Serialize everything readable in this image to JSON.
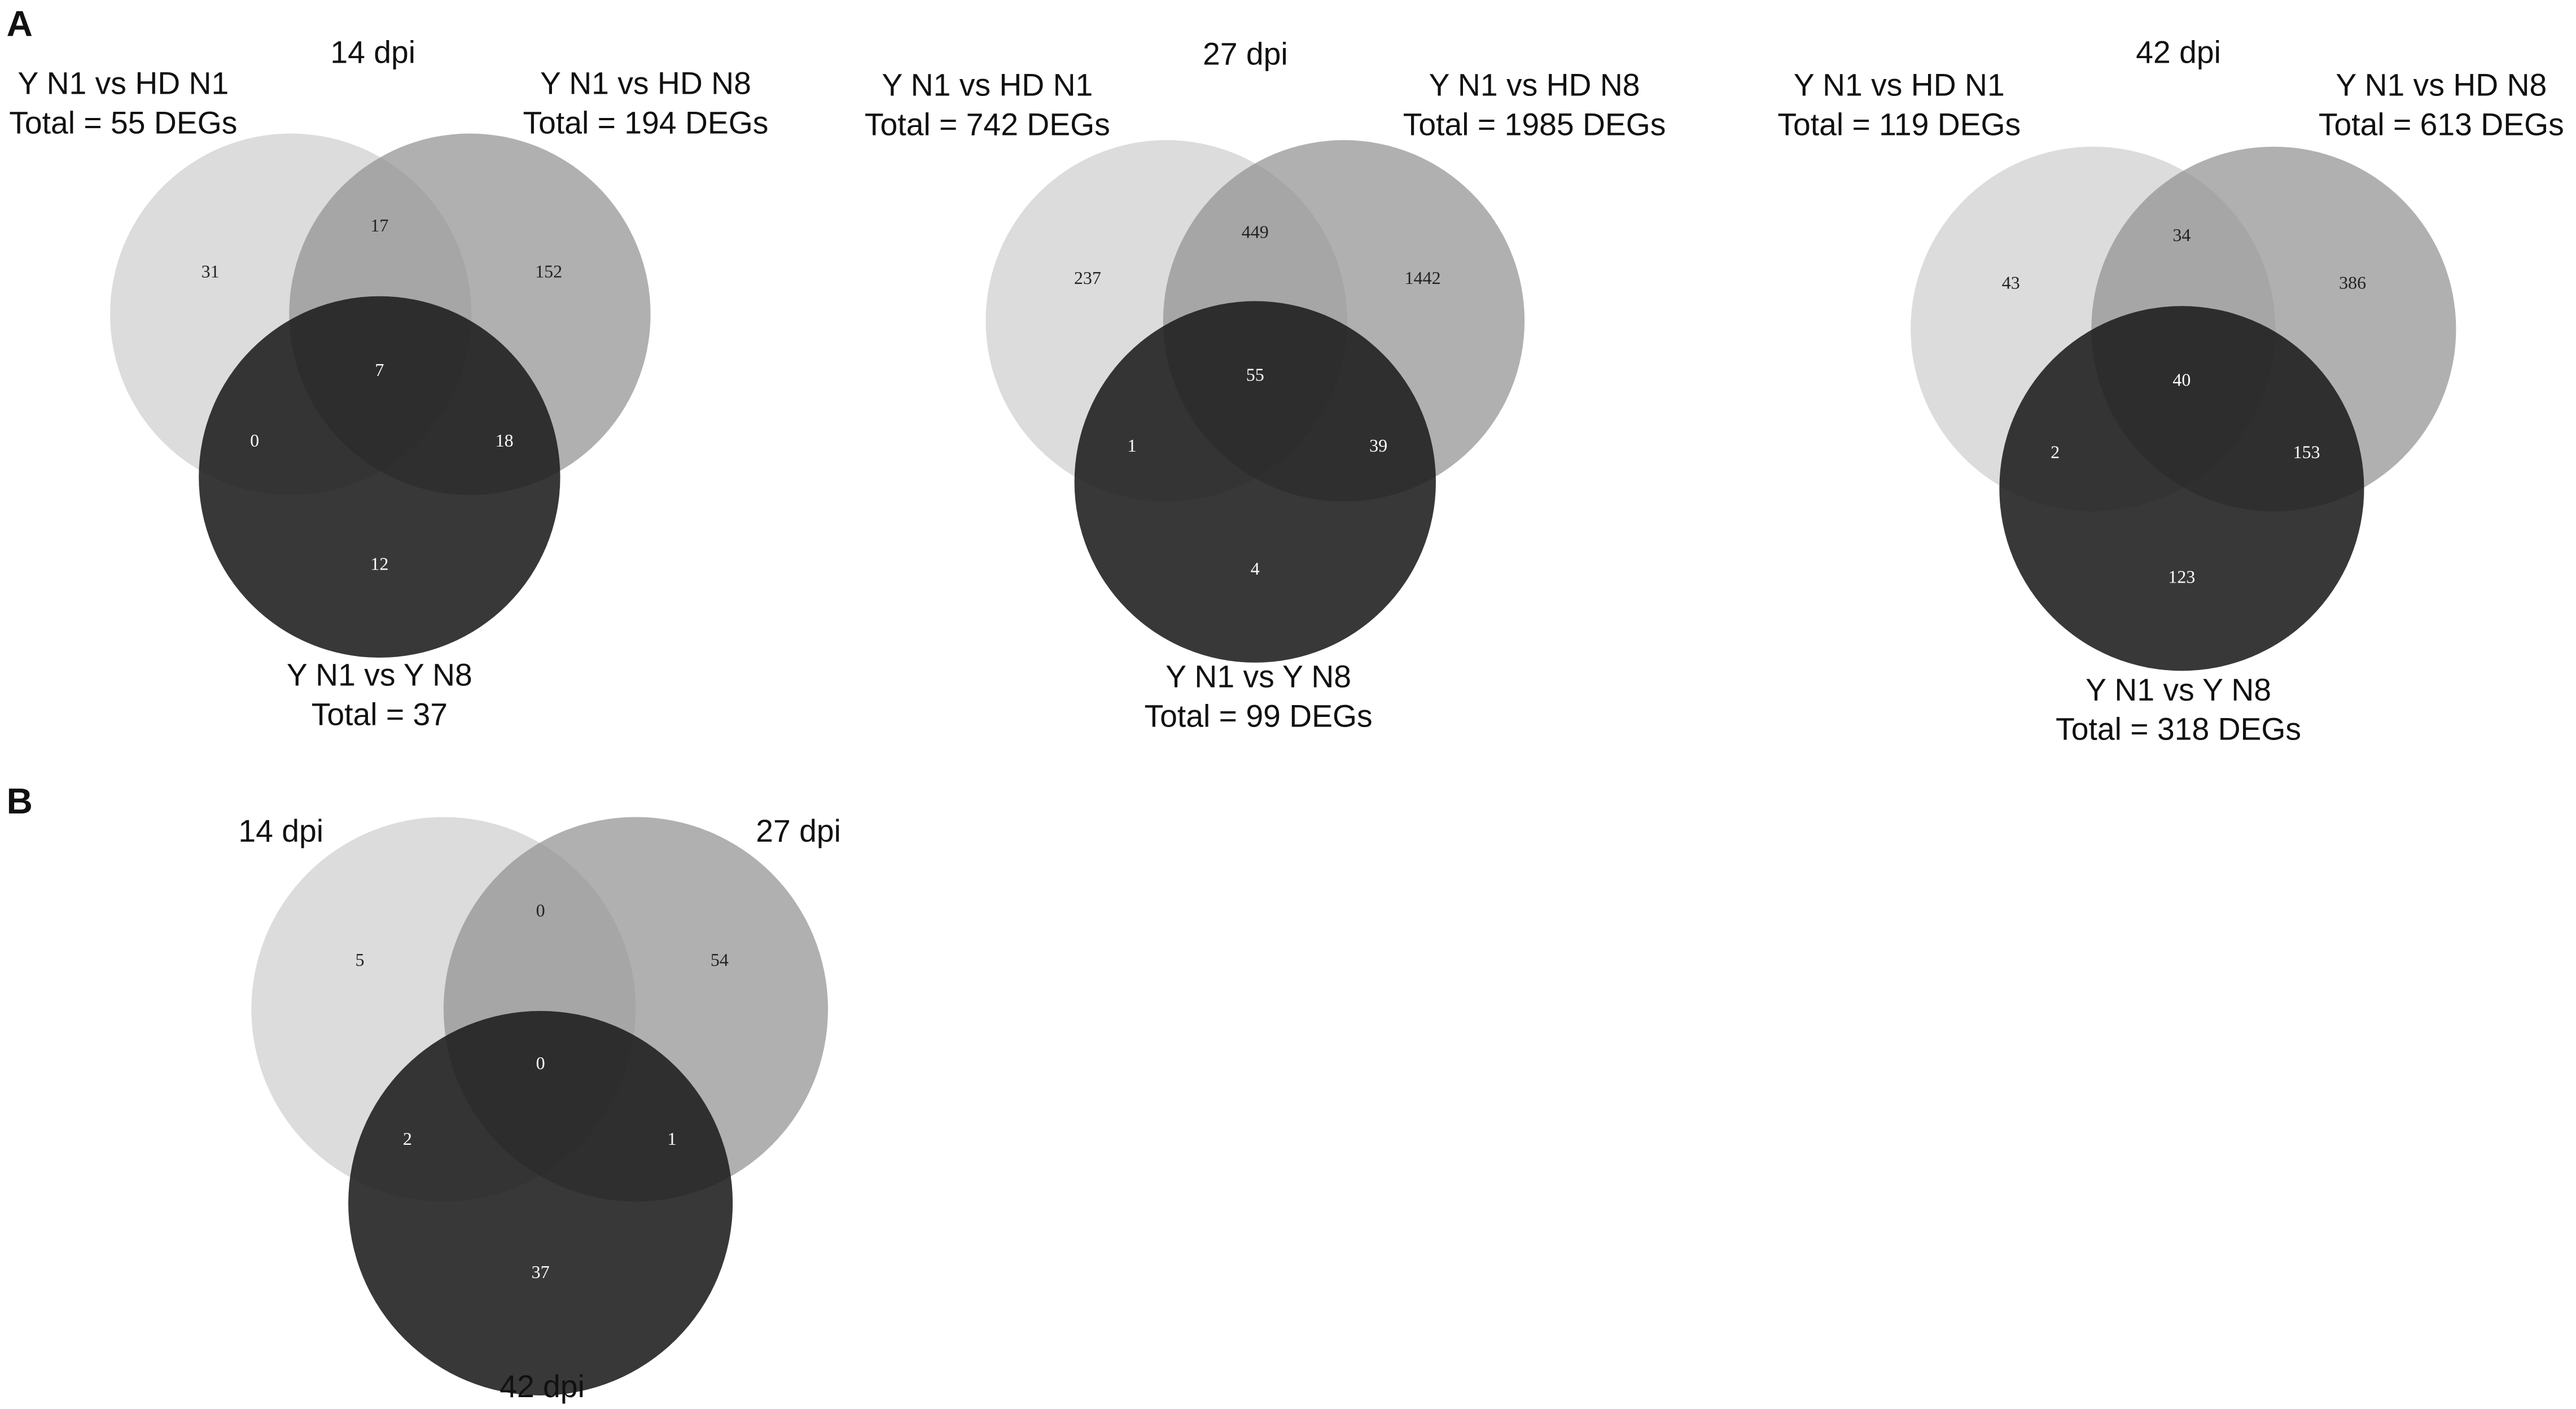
{
  "panels": [
    {
      "label": "A"
    },
    {
      "label": "B"
    }
  ],
  "chart_data": [
    {
      "type": "venn",
      "title": "14 dpi",
      "sets": [
        {
          "name": "Y N1 vs HD N1",
          "total": "Total = 55 DEGs",
          "color": "#dcdcdc"
        },
        {
          "name": "Y N1 vs HD N8",
          "total": "Total = 194 DEGs",
          "color": "#8e8e8e"
        },
        {
          "name": "Y N1 vs Y N8",
          "total": "Total = 37",
          "color": "#1c1c1c"
        }
      ],
      "values": [
        31,
        17,
        152,
        7,
        0,
        18,
        12
      ]
    },
    {
      "type": "venn",
      "title": "27 dpi",
      "sets": [
        {
          "name": "Y N1 vs HD N1",
          "total": "Total = 742 DEGs",
          "color": "#dcdcdc"
        },
        {
          "name": "Y N1 vs HD N8",
          "total": "Total = 1985 DEGs",
          "color": "#8e8e8e"
        },
        {
          "name": "Y N1 vs Y N8",
          "total": "Total = 99 DEGs",
          "color": "#1c1c1c"
        }
      ],
      "values": [
        237,
        449,
        1442,
        55,
        1,
        39,
        4
      ]
    },
    {
      "type": "venn",
      "title": "42 dpi",
      "sets": [
        {
          "name": "Y N1 vs HD N1",
          "total": "Total = 119 DEGs",
          "color": "#dcdcdc"
        },
        {
          "name": "Y N1 vs HD N8",
          "total": "Total = 613 DEGs",
          "color": "#8e8e8e"
        },
        {
          "name": "Y N1 vs Y N8",
          "total": "Total = 318 DEGs",
          "color": "#1c1c1c"
        }
      ],
      "values": [
        43,
        34,
        386,
        40,
        2,
        153,
        123
      ]
    },
    {
      "type": "venn",
      "sets": [
        {
          "name": "14 dpi",
          "color": "#dcdcdc"
        },
        {
          "name": "27 dpi",
          "color": "#8e8e8e"
        },
        {
          "name": "42 dpi",
          "color": "#1c1c1c"
        }
      ],
      "values": [
        5,
        0,
        54,
        0,
        2,
        1,
        37
      ]
    }
  ]
}
